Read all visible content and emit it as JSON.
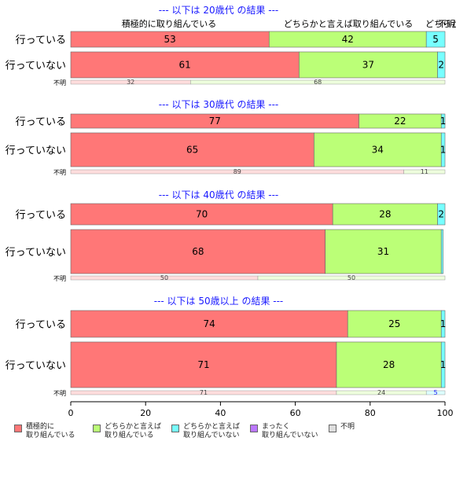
{
  "chart_data": {
    "type": "bar",
    "orientation": "horizontal",
    "stacked": true,
    "x_ticks": [
      0,
      20,
      40,
      60,
      80,
      100
    ],
    "xlim": [
      0,
      100
    ],
    "series": [
      {
        "name": "積極的に\n取り組んでいる",
        "color": "#ff7777"
      },
      {
        "name": "どちらかと言えば\n取り組んでいる",
        "color": "#bbff77"
      },
      {
        "name": "どちらかと言えば\n取り組んでいない",
        "color": "#77ffff"
      },
      {
        "name": "まったく\n取り組んでいない",
        "color": "#bb77ff"
      },
      {
        "name": "不明",
        "color": "#dddddd"
      }
    ],
    "top_annotations": [
      "積極的に取り組んでいる",
      "どちらかと言えば取り組んでいる",
      "どちらか",
      "不明"
    ],
    "groups": [
      {
        "title": "--- 以下は 20歳代 の結果 ---",
        "rows": [
          {
            "label": "行っている",
            "values": [
              53,
              42,
              5,
              0,
              0
            ],
            "labels": [
              "53",
              "42",
              "5",
              "",
              ""
            ]
          },
          {
            "label": "行っていない",
            "values": [
              61,
              37,
              2,
              0,
              0
            ],
            "labels": [
              "61",
              "37",
              "2",
              "",
              ""
            ]
          }
        ],
        "unknown": {
          "label": "不明",
          "values": [
            32,
            68
          ],
          "labels": [
            "32",
            "68"
          ]
        }
      },
      {
        "title": "--- 以下は 30歳代 の結果 ---",
        "rows": [
          {
            "label": "行っている",
            "values": [
              77,
              22,
              1,
              0,
              0
            ],
            "labels": [
              "77",
              "22",
              "1",
              "",
              ""
            ]
          },
          {
            "label": "行っていない",
            "values": [
              65,
              34,
              1,
              0,
              0
            ],
            "labels": [
              "65",
              "34",
              "1",
              "",
              ""
            ]
          }
        ],
        "unknown": {
          "label": "不明",
          "values": [
            89,
            11
          ],
          "labels": [
            "89",
            "11"
          ]
        }
      },
      {
        "title": "--- 以下は 40歳代 の結果 ---",
        "rows": [
          {
            "label": "行っている",
            "values": [
              70,
              28,
              2,
              0,
              0
            ],
            "labels": [
              "70",
              "28",
              "2",
              "",
              ""
            ]
          },
          {
            "label": "行っていない",
            "values": [
              68,
              31,
              0.5,
              0,
              0
            ],
            "labels": [
              "68",
              "31",
              "",
              "",
              ""
            ]
          }
        ],
        "unknown": {
          "label": "不明",
          "values": [
            50,
            50
          ],
          "labels": [
            "50",
            "50"
          ]
        }
      },
      {
        "title": "--- 以下は 50歳以上 の結果 ---",
        "rows": [
          {
            "label": "行っている",
            "values": [
              74,
              25,
              1,
              0,
              0
            ],
            "labels": [
              "74",
              "25",
              "1",
              "",
              ""
            ]
          },
          {
            "label": "行っていない",
            "values": [
              71,
              28,
              1,
              0,
              0
            ],
            "labels": [
              "71",
              "28",
              "1",
              "",
              ""
            ]
          }
        ],
        "unknown": {
          "label": "不明",
          "values": [
            71,
            24,
            5
          ],
          "labels": [
            "71",
            "24",
            "5"
          ]
        }
      }
    ]
  }
}
